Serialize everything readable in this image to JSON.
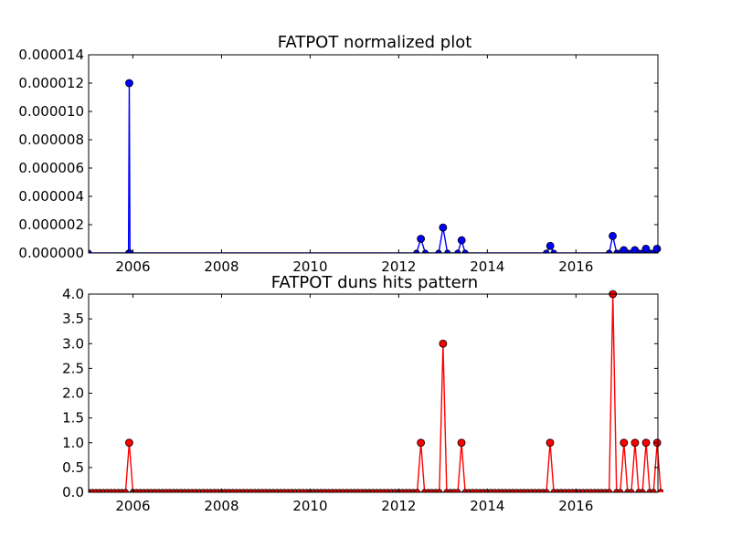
{
  "chart_data": [
    {
      "type": "line",
      "title": "FATPOT normalized plot",
      "xlabel": "",
      "ylabel": "",
      "xlim": [
        2005.0,
        2017.85
      ],
      "ylim": [
        0,
        1.4e-05
      ],
      "x_ticks": [
        2006,
        2008,
        2010,
        2012,
        2014,
        2016
      ],
      "x_tick_labels": [
        "2006",
        "2008",
        "2010",
        "2012",
        "2014",
        "2016"
      ],
      "y_ticks": [
        0,
        2e-06,
        4e-06,
        6e-06,
        8e-06,
        1e-05,
        1.2e-05,
        1.4e-05
      ],
      "y_tick_labels": [
        "0.000000",
        "0.000002",
        "0.000004",
        "0.000006",
        "0.000008",
        "0.000010",
        "0.000012",
        "0.000014"
      ],
      "grid": false,
      "color": "#0000ff",
      "marker": "circle",
      "series": [
        {
          "x": [
            2005.0,
            2005.9,
            2005.917,
            2005.934,
            2012.4,
            2012.5,
            2012.6,
            2012.9,
            2013.0,
            2013.1,
            2013.33,
            2013.42,
            2013.5,
            2015.33,
            2015.42,
            2015.5,
            2016.75,
            2016.83,
            2016.92,
            2017.0,
            2017.08,
            2017.17,
            2017.25,
            2017.33,
            2017.42,
            2017.5,
            2017.58,
            2017.67,
            2017.75,
            2017.83
          ],
          "y": [
            0,
            0,
            1.2e-05,
            0,
            0,
            1e-06,
            0,
            0,
            1.8e-06,
            0,
            0,
            9e-07,
            0,
            0,
            5e-07,
            0,
            0,
            1.2e-06,
            0,
            0,
            2e-07,
            0,
            0,
            2e-07,
            0,
            0,
            3e-07,
            0,
            0,
            3e-07
          ]
        }
      ]
    },
    {
      "type": "line",
      "title": "FATPOT duns hits pattern",
      "xlabel": "",
      "ylabel": "",
      "xlim": [
        2005.0,
        2017.85
      ],
      "ylim": [
        0,
        4.0
      ],
      "x_ticks": [
        2006,
        2008,
        2010,
        2012,
        2014,
        2016
      ],
      "x_tick_labels": [
        "2006",
        "2008",
        "2010",
        "2012",
        "2014",
        "2016"
      ],
      "y_ticks": [
        0,
        0.5,
        1,
        1.5,
        2,
        2.5,
        3,
        3.5,
        4
      ],
      "y_tick_labels": [
        "0.0",
        "0.5",
        "1.0",
        "1.5",
        "2.0",
        "2.5",
        "3.0",
        "3.5",
        "4.0"
      ],
      "grid": false,
      "color": "#ff0000",
      "marker": "circle",
      "series": [
        {
          "x_start": 2005.0,
          "x_step_months": 1,
          "count": 156,
          "nonzero": [
            {
              "x": 2005.917,
              "y": 1
            },
            {
              "x": 2012.5,
              "y": 1
            },
            {
              "x": 2013.0,
              "y": 3
            },
            {
              "x": 2013.42,
              "y": 1
            },
            {
              "x": 2015.42,
              "y": 1
            },
            {
              "x": 2016.83,
              "y": 4
            },
            {
              "x": 2017.08,
              "y": 1
            },
            {
              "x": 2017.33,
              "y": 1
            },
            {
              "x": 2017.58,
              "y": 1
            },
            {
              "x": 2017.83,
              "y": 1
            }
          ]
        }
      ]
    }
  ]
}
